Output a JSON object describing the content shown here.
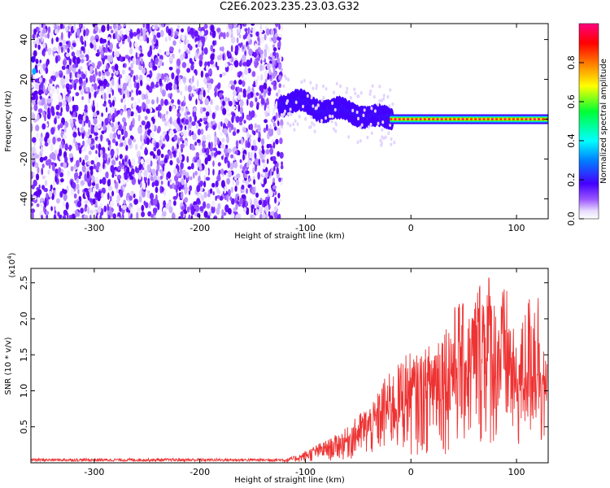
{
  "title": "C2E6.2023.235.23.03.G32",
  "chart_data": [
    {
      "type": "heatmap",
      "xlabel": "Height of straight line (km)",
      "ylabel": "Frequency (Hz)",
      "xlim": [
        -360,
        130
      ],
      "ylim": [
        -50,
        48
      ],
      "xticks": [
        -300,
        -200,
        -100,
        0,
        100
      ],
      "yticks": [
        -40,
        -20,
        0,
        20,
        40
      ],
      "grid": false,
      "description_regions": [
        {
          "x": [
            -360,
            -122
          ],
          "y": [
            -50,
            48
          ],
          "level": "low-medium noise (0.0–0.25)"
        },
        {
          "x": [
            -122,
            -20
          ],
          "y_center": [
            9,
            0
          ],
          "width_hz": 8,
          "level": "0.3–0.6"
        },
        {
          "x": [
            -20,
            130
          ],
          "y_center": 0,
          "width_hz": 4,
          "level": "0.7–1.0"
        }
      ],
      "colorbar": {
        "label": "Normalized spectral amplitude",
        "range": [
          0.0,
          1.0
        ],
        "ticks": [
          0.0,
          0.2,
          0.4,
          0.6,
          0.8
        ],
        "tick_labels": [
          "0.0",
          "0.2",
          "0.4",
          "0.6",
          "0.8"
        ],
        "colormap": "rainbow (white, purple, blue, cyan, green, yellow, orange, red, magenta)"
      }
    },
    {
      "type": "line",
      "xlabel": "Height of straight line (km)",
      "ylabel": "SNR (10 * v/v)",
      "y_scale_label": "(x10",
      "y_scale_exp": "4",
      "y_scale_close": ")",
      "xlim": [
        -360,
        130
      ],
      "ylim": [
        0,
        2.7
      ],
      "xticks": [
        -300,
        -200,
        -100,
        0,
        100
      ],
      "yticks": [
        0.5,
        1.0,
        1.5,
        2.0,
        2.5
      ],
      "ytick_labels": [
        "0.5",
        "1.0",
        "1.5",
        "2.0",
        "2.5"
      ],
      "grid": false,
      "series": [
        {
          "color": "#ee3333",
          "envelope_x": [
            -360,
            -120,
            -105,
            -90,
            -75,
            -60,
            -45,
            -35,
            -25,
            -15,
            -5,
            5,
            15,
            25,
            35,
            45,
            55,
            65,
            75,
            80,
            90,
            100,
            110,
            120,
            128
          ],
          "envelope_y": [
            0.05,
            0.05,
            0.12,
            0.25,
            0.35,
            0.5,
            0.75,
            0.85,
            1.2,
            1.3,
            1.55,
            1.5,
            1.6,
            1.9,
            2.0,
            2.3,
            2.1,
            2.6,
            2.7,
            2.25,
            2.5,
            1.6,
            2.3,
            2.55,
            1.4
          ]
        }
      ]
    }
  ]
}
